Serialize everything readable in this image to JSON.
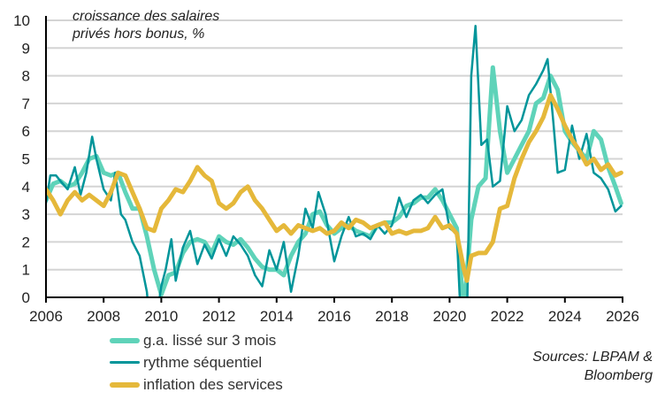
{
  "chart_data": {
    "type": "line",
    "annotation": [
      "croissance des salaires",
      "privés hors bonus, %"
    ],
    "source": [
      "Sources: LBPAM &",
      "Bloomberg"
    ],
    "xlim": [
      2006,
      2026
    ],
    "ylim": [
      0,
      10
    ],
    "x_ticks": [
      "2006",
      "2008",
      "2010",
      "2012",
      "2014",
      "2016",
      "2018",
      "2020",
      "2022",
      "2024",
      "2026"
    ],
    "y_ticks": [
      "0",
      "1",
      "2",
      "3",
      "4",
      "5",
      "6",
      "7",
      "8",
      "9",
      "10"
    ],
    "grid": "horizontal",
    "legend_position": "bottom-left",
    "series": [
      {
        "name": "g.a. lissé sur 3 mois",
        "color": "#5fd3b9",
        "width": 5,
        "points": [
          [
            2006,
            3.5
          ],
          [
            2006.25,
            4.1
          ],
          [
            2006.5,
            4.2
          ],
          [
            2006.75,
            4.0
          ],
          [
            2007,
            4.1
          ],
          [
            2007.25,
            4.5
          ],
          [
            2007.5,
            5.0
          ],
          [
            2007.75,
            5.1
          ],
          [
            2008,
            4.5
          ],
          [
            2008.25,
            4.4
          ],
          [
            2008.5,
            4.5
          ],
          [
            2008.75,
            3.8
          ],
          [
            2009,
            3.2
          ],
          [
            2009.25,
            3.2
          ],
          [
            2009.5,
            2.2
          ],
          [
            2009.75,
            1.0
          ],
          [
            2010,
            0.1
          ],
          [
            2010.25,
            0.8
          ],
          [
            2010.5,
            0.9
          ],
          [
            2010.75,
            1.6
          ],
          [
            2011,
            2.0
          ],
          [
            2011.25,
            2.1
          ],
          [
            2011.5,
            2.0
          ],
          [
            2011.75,
            1.6
          ],
          [
            2012,
            2.2
          ],
          [
            2012.25,
            2.0
          ],
          [
            2012.5,
            1.9
          ],
          [
            2012.75,
            2.1
          ],
          [
            2013,
            1.8
          ],
          [
            2013.25,
            1.4
          ],
          [
            2013.5,
            1.1
          ],
          [
            2013.75,
            1.0
          ],
          [
            2014,
            1.0
          ],
          [
            2014.25,
            0.8
          ],
          [
            2014.5,
            1.5
          ],
          [
            2014.75,
            2.0
          ],
          [
            2015,
            2.3
          ],
          [
            2015.25,
            3.0
          ],
          [
            2015.5,
            3.1
          ],
          [
            2015.75,
            2.6
          ],
          [
            2016,
            2.3
          ],
          [
            2016.25,
            2.5
          ],
          [
            2016.5,
            2.6
          ],
          [
            2016.75,
            2.4
          ],
          [
            2017,
            2.3
          ],
          [
            2017.25,
            2.2
          ],
          [
            2017.5,
            2.6
          ],
          [
            2017.75,
            2.7
          ],
          [
            2018,
            2.7
          ],
          [
            2018.25,
            2.9
          ],
          [
            2018.5,
            3.3
          ],
          [
            2018.75,
            3.4
          ],
          [
            2019,
            3.6
          ],
          [
            2019.25,
            3.6
          ],
          [
            2019.5,
            3.9
          ],
          [
            2019.75,
            3.5
          ],
          [
            2020,
            3.0
          ],
          [
            2020.25,
            2.5
          ],
          [
            2020.5,
            -0.5
          ],
          [
            2020.75,
            2.8
          ],
          [
            2021,
            4.0
          ],
          [
            2021.25,
            4.3
          ],
          [
            2021.5,
            8.3
          ],
          [
            2021.75,
            6.0
          ],
          [
            2022,
            4.5
          ],
          [
            2022.25,
            5.0
          ],
          [
            2022.5,
            5.5
          ],
          [
            2022.75,
            6.0
          ],
          [
            2023,
            7.0
          ],
          [
            2023.25,
            7.2
          ],
          [
            2023.5,
            8.0
          ],
          [
            2023.75,
            7.5
          ],
          [
            2024,
            6.0
          ],
          [
            2024.25,
            5.6
          ],
          [
            2024.5,
            5.3
          ],
          [
            2024.75,
            5.0
          ],
          [
            2025,
            6.0
          ],
          [
            2025.25,
            5.7
          ],
          [
            2025.5,
            4.7
          ],
          [
            2025.75,
            4.0
          ],
          [
            2025.95,
            3.4
          ]
        ]
      },
      {
        "name": "rythme séquentiel",
        "color": "#00959a",
        "width": 2.5,
        "points": [
          [
            2006,
            3.4
          ],
          [
            2006.15,
            4.4
          ],
          [
            2006.35,
            4.4
          ],
          [
            2006.5,
            4.2
          ],
          [
            2006.75,
            3.9
          ],
          [
            2007,
            4.7
          ],
          [
            2007.2,
            3.7
          ],
          [
            2007.4,
            4.5
          ],
          [
            2007.6,
            5.8
          ],
          [
            2007.75,
            5.0
          ],
          [
            2008,
            3.9
          ],
          [
            2008.25,
            3.5
          ],
          [
            2008.4,
            4.5
          ],
          [
            2008.6,
            3.0
          ],
          [
            2008.75,
            2.8
          ],
          [
            2009,
            2.0
          ],
          [
            2009.25,
            1.5
          ],
          [
            2009.5,
            0.2
          ],
          [
            2009.6,
            -1
          ],
          [
            2009.8,
            -1
          ],
          [
            2010,
            0.4
          ],
          [
            2010.15,
            1.0
          ],
          [
            2010.35,
            2.1
          ],
          [
            2010.5,
            0.6
          ],
          [
            2010.75,
            1.8
          ],
          [
            2011,
            2.4
          ],
          [
            2011.25,
            1.2
          ],
          [
            2011.5,
            1.9
          ],
          [
            2011.75,
            1.4
          ],
          [
            2012,
            2.1
          ],
          [
            2012.25,
            1.5
          ],
          [
            2012.5,
            2.2
          ],
          [
            2012.75,
            1.9
          ],
          [
            2013,
            1.5
          ],
          [
            2013.25,
            0.8
          ],
          [
            2013.5,
            0.4
          ],
          [
            2013.75,
            1.7
          ],
          [
            2014,
            1.0
          ],
          [
            2014.25,
            2.0
          ],
          [
            2014.5,
            0.2
          ],
          [
            2014.75,
            1.5
          ],
          [
            2015,
            3.2
          ],
          [
            2015.25,
            2.5
          ],
          [
            2015.45,
            3.8
          ],
          [
            2015.7,
            3.0
          ],
          [
            2016,
            1.3
          ],
          [
            2016.25,
            2.2
          ],
          [
            2016.5,
            2.9
          ],
          [
            2016.75,
            2.2
          ],
          [
            2017,
            2.3
          ],
          [
            2017.25,
            2.1
          ],
          [
            2017.5,
            2.6
          ],
          [
            2017.75,
            2.3
          ],
          [
            2018,
            2.6
          ],
          [
            2018.25,
            3.6
          ],
          [
            2018.5,
            2.9
          ],
          [
            2018.75,
            3.5
          ],
          [
            2019,
            3.7
          ],
          [
            2019.25,
            3.4
          ],
          [
            2019.5,
            3.7
          ],
          [
            2019.75,
            3.9
          ],
          [
            2020,
            2.5
          ],
          [
            2020.25,
            2.3
          ],
          [
            2020.4,
            -1
          ],
          [
            2020.6,
            -1
          ],
          [
            2020.75,
            8.0
          ],
          [
            2020.9,
            9.8
          ],
          [
            2021.1,
            5.5
          ],
          [
            2021.3,
            5.7
          ],
          [
            2021.5,
            4.0
          ],
          [
            2021.75,
            4.2
          ],
          [
            2022,
            6.9
          ],
          [
            2022.25,
            6.0
          ],
          [
            2022.5,
            6.4
          ],
          [
            2022.75,
            7.3
          ],
          [
            2023,
            7.7
          ],
          [
            2023.25,
            8.2
          ],
          [
            2023.4,
            8.6
          ],
          [
            2023.6,
            6.3
          ],
          [
            2023.75,
            4.5
          ],
          [
            2024,
            4.6
          ],
          [
            2024.25,
            6.2
          ],
          [
            2024.5,
            5.0
          ],
          [
            2024.75,
            5.9
          ],
          [
            2025,
            4.5
          ],
          [
            2025.25,
            4.3
          ],
          [
            2025.5,
            3.9
          ],
          [
            2025.75,
            3.1
          ],
          [
            2025.95,
            3.3
          ]
        ]
      },
      {
        "name": "inflation des services",
        "color": "#e5b83a",
        "width": 5,
        "points": [
          [
            2006,
            3.9
          ],
          [
            2006.25,
            3.5
          ],
          [
            2006.5,
            3.0
          ],
          [
            2006.75,
            3.5
          ],
          [
            2007,
            3.8
          ],
          [
            2007.25,
            3.5
          ],
          [
            2007.5,
            3.7
          ],
          [
            2007.75,
            3.5
          ],
          [
            2008,
            3.3
          ],
          [
            2008.25,
            3.8
          ],
          [
            2008.5,
            4.5
          ],
          [
            2008.75,
            4.4
          ],
          [
            2009,
            3.8
          ],
          [
            2009.25,
            3.2
          ],
          [
            2009.5,
            2.5
          ],
          [
            2009.75,
            2.4
          ],
          [
            2010,
            3.2
          ],
          [
            2010.25,
            3.5
          ],
          [
            2010.5,
            3.9
          ],
          [
            2010.75,
            3.8
          ],
          [
            2011,
            4.2
          ],
          [
            2011.25,
            4.7
          ],
          [
            2011.5,
            4.4
          ],
          [
            2011.75,
            4.2
          ],
          [
            2012,
            3.4
          ],
          [
            2012.25,
            3.2
          ],
          [
            2012.5,
            3.4
          ],
          [
            2012.75,
            3.8
          ],
          [
            2013,
            4.0
          ],
          [
            2013.25,
            3.5
          ],
          [
            2013.5,
            3.2
          ],
          [
            2013.75,
            2.8
          ],
          [
            2014,
            2.4
          ],
          [
            2014.25,
            2.6
          ],
          [
            2014.5,
            2.3
          ],
          [
            2014.75,
            2.6
          ],
          [
            2015,
            2.5
          ],
          [
            2015.25,
            2.4
          ],
          [
            2015.5,
            2.5
          ],
          [
            2015.75,
            2.3
          ],
          [
            2016,
            2.4
          ],
          [
            2016.25,
            2.7
          ],
          [
            2016.5,
            2.5
          ],
          [
            2016.75,
            2.8
          ],
          [
            2017,
            2.7
          ],
          [
            2017.25,
            2.5
          ],
          [
            2017.5,
            2.6
          ],
          [
            2017.75,
            2.7
          ],
          [
            2018,
            2.3
          ],
          [
            2018.25,
            2.4
          ],
          [
            2018.5,
            2.3
          ],
          [
            2018.75,
            2.4
          ],
          [
            2019,
            2.4
          ],
          [
            2019.25,
            2.5
          ],
          [
            2019.5,
            2.9
          ],
          [
            2019.75,
            2.5
          ],
          [
            2020,
            2.6
          ],
          [
            2020.25,
            2.3
          ],
          [
            2020.5,
            1.0
          ],
          [
            2020.6,
            0.6
          ],
          [
            2020.75,
            1.5
          ],
          [
            2021,
            1.6
          ],
          [
            2021.25,
            1.6
          ],
          [
            2021.5,
            2.0
          ],
          [
            2021.75,
            3.2
          ],
          [
            2022,
            3.3
          ],
          [
            2022.25,
            4.3
          ],
          [
            2022.5,
            5.0
          ],
          [
            2022.75,
            5.6
          ],
          [
            2023,
            6.0
          ],
          [
            2023.25,
            6.5
          ],
          [
            2023.5,
            7.3
          ],
          [
            2023.75,
            6.8
          ],
          [
            2024,
            6.2
          ],
          [
            2024.25,
            5.7
          ],
          [
            2024.5,
            5.3
          ],
          [
            2024.75,
            4.8
          ],
          [
            2025,
            5.0
          ],
          [
            2025.25,
            4.6
          ],
          [
            2025.5,
            4.8
          ],
          [
            2025.75,
            4.4
          ],
          [
            2025.95,
            4.5
          ]
        ]
      }
    ]
  }
}
